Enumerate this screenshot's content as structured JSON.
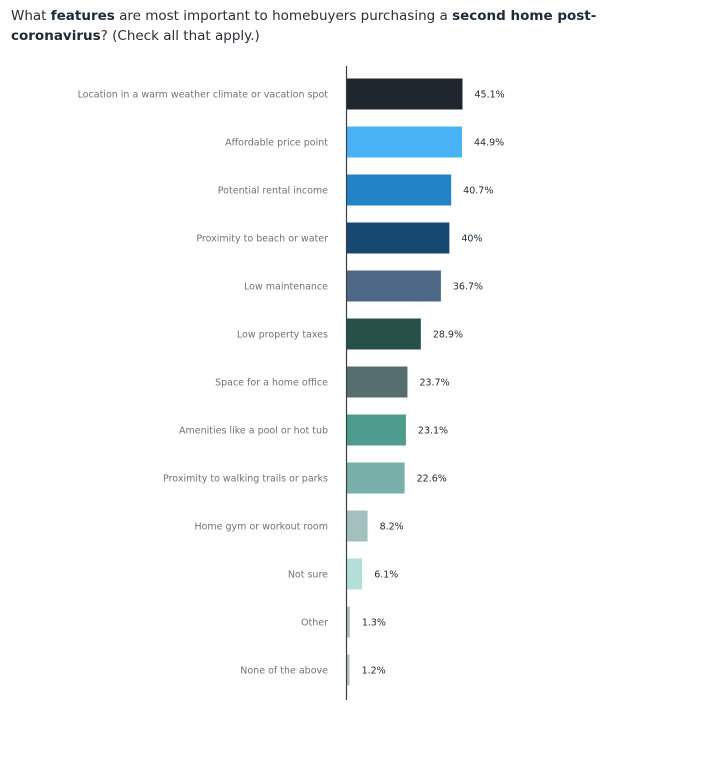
{
  "title": {
    "part1": "What ",
    "bold1": "features",
    "part2": " are most important to homebuyers purchasing a ",
    "bold2": "second home post-coronavirus",
    "part3": "? (Check all that apply.)"
  },
  "chart_data": {
    "type": "bar",
    "orientation": "horizontal",
    "categories": [
      "Location in a warm weather climate or vacation spot",
      "Affordable price point",
      "Potential rental income",
      "Proximity to beach or water",
      "Low maintenance",
      "Low property taxes",
      "Space for a home office",
      "Amenities like a pool or hot tub",
      "Proximity to walking trails or parks",
      "Home gym or workout room",
      "Not sure",
      "Other",
      "None of the above"
    ],
    "values": [
      45.1,
      44.9,
      40.7,
      40,
      36.7,
      28.9,
      23.7,
      23.1,
      22.6,
      8.2,
      6.1,
      1.3,
      1.2
    ],
    "value_labels": [
      "45.1%",
      "44.9%",
      "40.7%",
      "40%",
      "36.7%",
      "28.9%",
      "23.7%",
      "23.1%",
      "22.6%",
      "8.2%",
      "6.1%",
      "1.3%",
      "1.2%"
    ],
    "colors": [
      "#1f262d",
      "#4ab3f6",
      "#2283c6",
      "#174872",
      "#4e6784",
      "#275048",
      "#566f6e",
      "#4e9c8d",
      "#78b0a9",
      "#a3c0be",
      "#b4dfd8",
      "#b1b9bb",
      "#b9c0c2"
    ],
    "xlim": [
      0,
      100
    ],
    "grid": false,
    "legend": "none"
  }
}
